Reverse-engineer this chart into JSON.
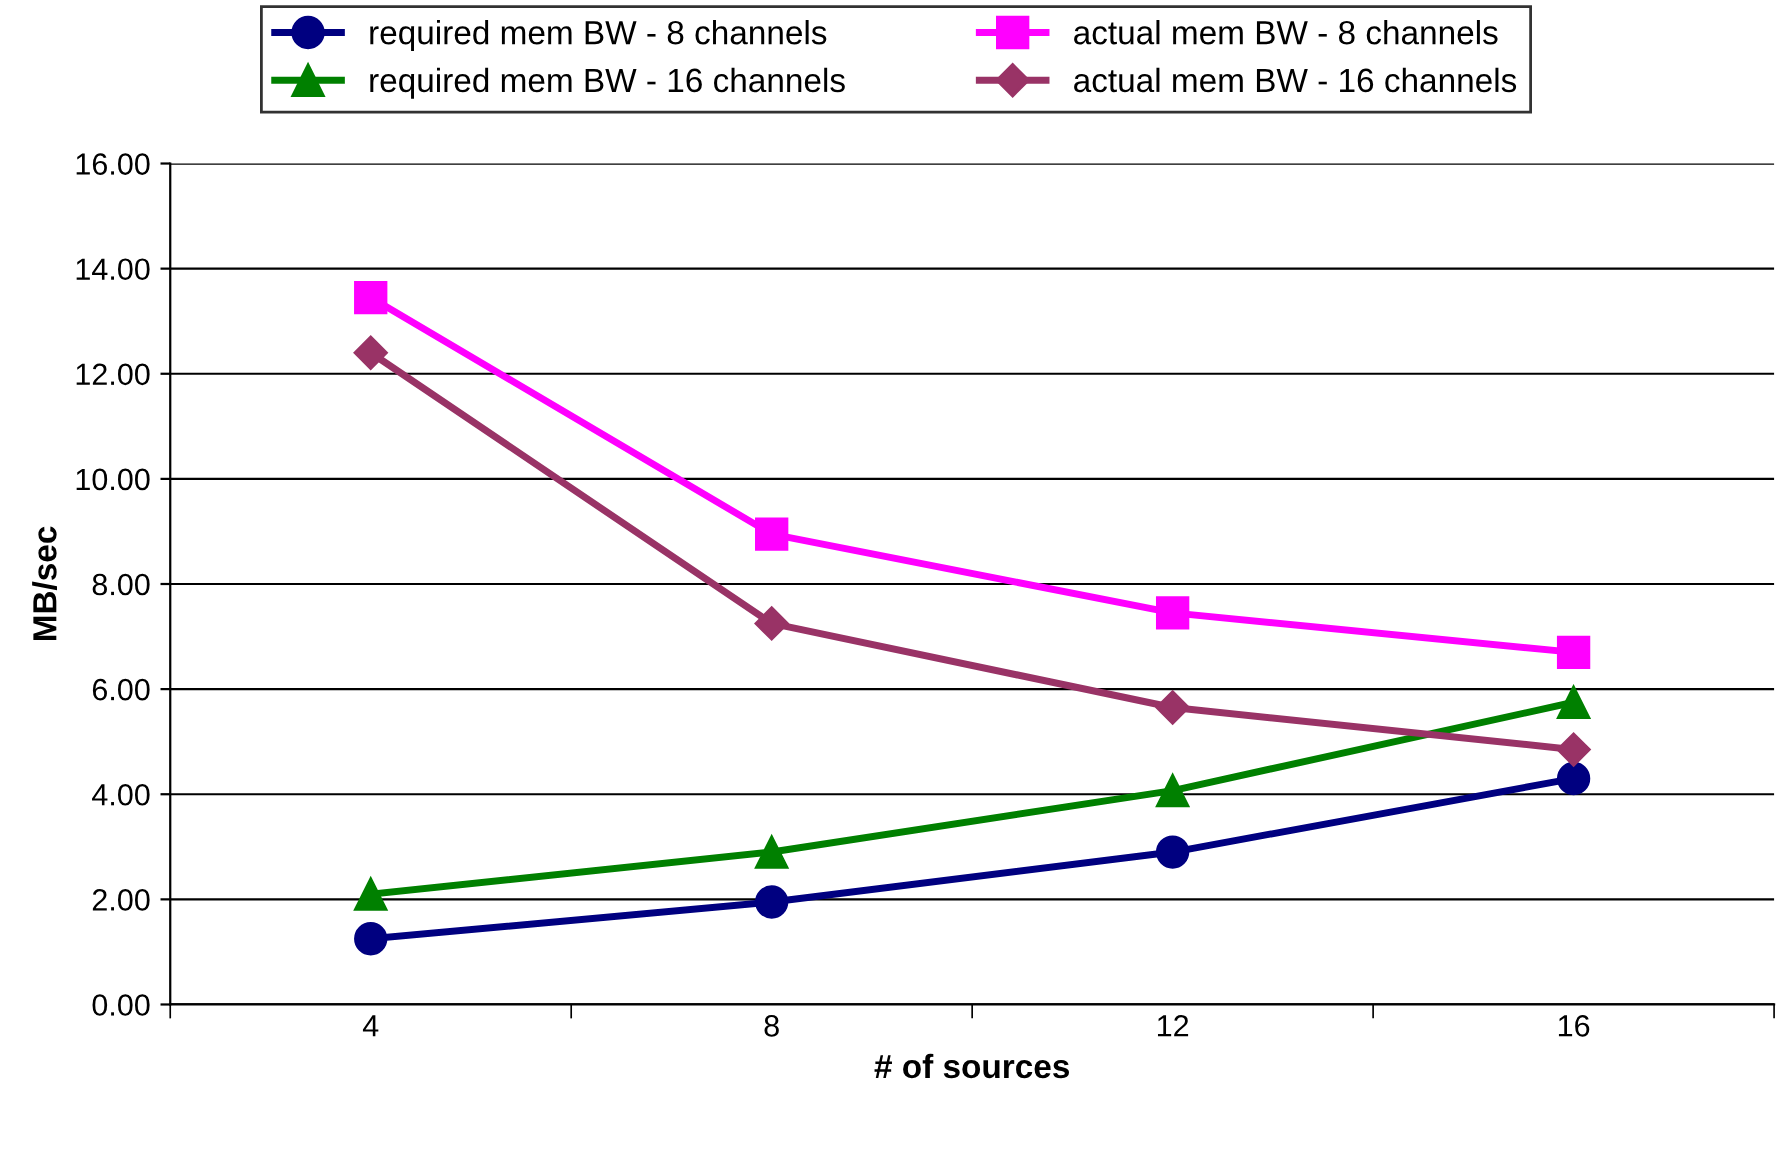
{
  "chart_data": {
    "type": "line",
    "xlabel": "# of sources",
    "ylabel": "MB/sec",
    "categories": [
      "4",
      "8",
      "12",
      "16"
    ],
    "series": [
      {
        "name": "required mem BW - 8 channels",
        "color": "#000080",
        "marker": "circle",
        "values": [
          1.25,
          1.95,
          2.9,
          4.3
        ]
      },
      {
        "name": "required mem BW - 16 channels",
        "color": "#008000",
        "marker": "triangle",
        "values": [
          2.1,
          2.9,
          4.07,
          5.75
        ]
      },
      {
        "name": "actual mem BW - 8 channels",
        "color": "#ff00ff",
        "marker": "square",
        "values": [
          13.45,
          8.95,
          7.45,
          6.7
        ]
      },
      {
        "name": "actual mem BW - 16 channels",
        "color": "#993366",
        "marker": "diamond",
        "values": [
          12.4,
          7.25,
          5.65,
          4.85
        ]
      }
    ],
    "ylim": [
      0,
      16
    ],
    "yticks": [
      {
        "value": 0,
        "label": "0.00"
      },
      {
        "value": 2,
        "label": "2.00"
      },
      {
        "value": 4,
        "label": "4.00"
      },
      {
        "value": 6,
        "label": "6.00"
      },
      {
        "value": 8,
        "label": "8.00"
      },
      {
        "value": 10,
        "label": "10.00"
      },
      {
        "value": 12,
        "label": "12.00"
      },
      {
        "value": 14,
        "label": "14.00"
      },
      {
        "value": 16,
        "label": "16.00"
      }
    ],
    "grid": "y",
    "legend": "top",
    "line_style": "solid"
  }
}
